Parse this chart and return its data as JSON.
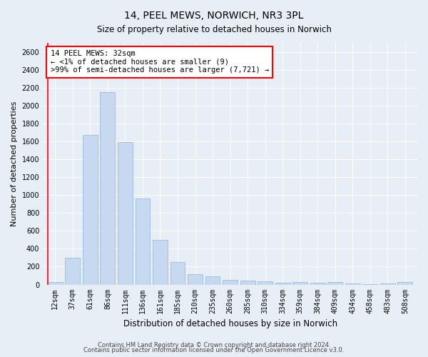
{
  "title": "14, PEEL MEWS, NORWICH, NR3 3PL",
  "subtitle": "Size of property relative to detached houses in Norwich",
  "xlabel": "Distribution of detached houses by size in Norwich",
  "ylabel": "Number of detached properties",
  "bar_color": "#c6d9f0",
  "bar_edge_color": "#8eb4d8",
  "categories": [
    "12sqm",
    "37sqm",
    "61sqm",
    "86sqm",
    "111sqm",
    "136sqm",
    "161sqm",
    "185sqm",
    "210sqm",
    "235sqm",
    "260sqm",
    "285sqm",
    "310sqm",
    "334sqm",
    "359sqm",
    "384sqm",
    "409sqm",
    "434sqm",
    "458sqm",
    "483sqm",
    "508sqm"
  ],
  "values": [
    25,
    300,
    1670,
    2150,
    1590,
    960,
    500,
    250,
    120,
    95,
    50,
    45,
    35,
    20,
    25,
    20,
    25,
    15,
    5,
    15,
    25
  ],
  "ylim": [
    0,
    2700
  ],
  "yticks": [
    0,
    200,
    400,
    600,
    800,
    1000,
    1200,
    1400,
    1600,
    1800,
    2000,
    2200,
    2400,
    2600
  ],
  "annotation_line1": "14 PEEL MEWS: 32sqm",
  "annotation_line2": "← <1% of detached houses are smaller (9)",
  "annotation_line3": ">99% of semi-detached houses are larger (7,721) →",
  "footer1": "Contains HM Land Registry data © Crown copyright and database right 2024.",
  "footer2": "Contains public sector information licensed under the Open Government Licence v3.0.",
  "background_color": "#e8eef5",
  "grid_color": "#ffffff",
  "title_fontsize": 10,
  "subtitle_fontsize": 8.5,
  "xlabel_fontsize": 8.5,
  "ylabel_fontsize": 8,
  "tick_fontsize": 7,
  "annotation_fontsize": 7.5,
  "footer_fontsize": 6
}
